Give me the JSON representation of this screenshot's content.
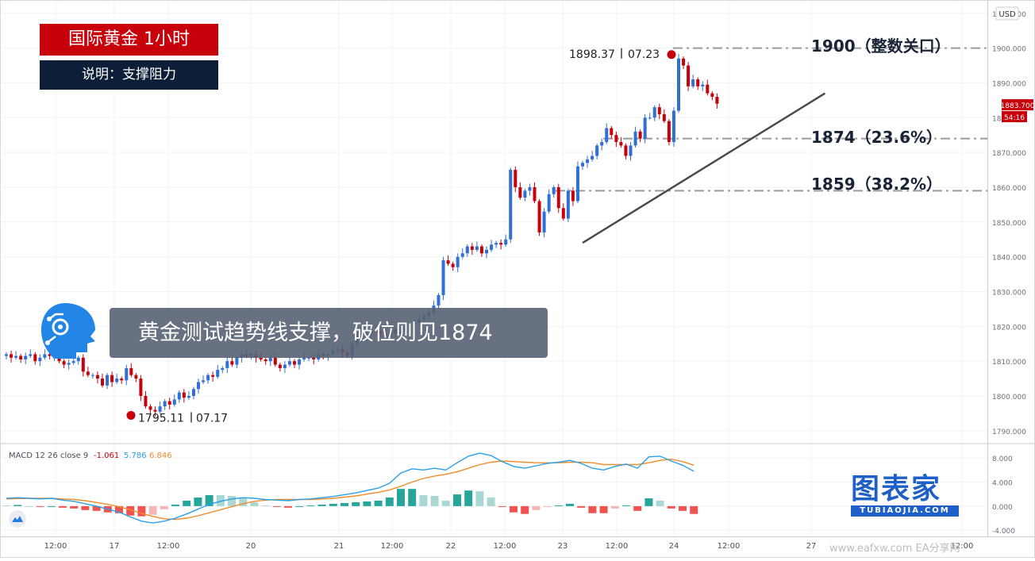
{
  "title": "国际黄金 1小时",
  "subtitle": "说明：支撑阻力",
  "banner": "黄金测试趋势线支撑，破位则见1874",
  "logo": {
    "main": "图表家",
    "url": "TUBIAOJIA.COM"
  },
  "watermark": "www.eafxw.com  EA分享网",
  "colors": {
    "up": "#2f6fd6",
    "down": "#c8000b",
    "title_bg": "#c8000b",
    "subtitle_bg": "#0d1f38",
    "macd_line": "#2aa0e8",
    "signal_line": "#f08c2a",
    "hist_up": "#26a69a",
    "hist_down": "#ef5350"
  },
  "chart_data": [
    {
      "type": "candlestick",
      "currency": "USD",
      "ylim": [
        1787,
        1912
      ],
      "y_ticks": [
        "1790.000",
        "1800.000",
        "1810.000",
        "1820.000",
        "1830.000",
        "1840.000",
        "1850.000",
        "1860.000",
        "1870.000",
        "1880.000",
        "1890.000",
        "1900.000",
        "1910.000"
      ],
      "x_ticks": [
        "12:00",
        "17",
        "12:00",
        "20",
        "21",
        "12:00",
        "22",
        "12:00",
        "23",
        "12:00",
        "24",
        "12:00",
        "27",
        "12:00"
      ],
      "last_price": "1883.700",
      "countdown": "54:16",
      "low_marker": {
        "price": "1795.11",
        "date": "07.17",
        "value": 1795.11
      },
      "high_marker": {
        "price": "1898.37",
        "date": "07.23",
        "value": 1898.37
      },
      "levels": [
        {
          "value": 1900,
          "label": "1900（整数关口）"
        },
        {
          "value": 1874,
          "label": "1874（23.6%）"
        },
        {
          "value": 1859,
          "label": "1859（38.2%）"
        }
      ],
      "trendline": {
        "from": {
          "bar": 120,
          "price": 1844
        },
        "to": {
          "bar": 168,
          "price": 1887
        }
      },
      "candles_close": [
        1812,
        1811,
        1811.5,
        1810.5,
        1811.5,
        1812,
        1810,
        1811,
        1812,
        1811.5,
        1813,
        1810,
        1809,
        1809.5,
        1810,
        1811,
        1807,
        1806,
        1806,
        1805,
        1803,
        1806,
        1804,
        1805,
        1804.5,
        1808,
        1806,
        1805,
        1800,
        1797,
        1796,
        1795.5,
        1797,
        1798.5,
        1797.5,
        1799,
        1801,
        1799.5,
        1800,
        1802,
        1804,
        1804.5,
        1806,
        1805.5,
        1807.5,
        1808,
        1810,
        1809,
        1811,
        1812,
        1811.5,
        1812,
        1811,
        1810.5,
        1810,
        1811,
        1809,
        1808,
        1809,
        1810,
        1809,
        1810.5,
        1811,
        1811,
        1810.5,
        1812,
        1811.5,
        1812,
        1813,
        1813.5,
        1812.5,
        1811.5,
        1815,
        1817,
        1816,
        1818,
        1819,
        1818.5,
        1818,
        1817,
        1819,
        1818,
        1818.5,
        1820,
        1820.5,
        1821,
        1822,
        1823,
        1824,
        1826,
        1829,
        1839,
        1838,
        1837,
        1840,
        1841,
        1843,
        1842,
        1843,
        1841,
        1842,
        1843.5,
        1844,
        1843.5,
        1845,
        1865,
        1860,
        1857,
        1859,
        1860,
        1856,
        1847,
        1853,
        1858,
        1860,
        1854,
        1851,
        1859,
        1856,
        1866,
        1867,
        1868,
        1869,
        1872,
        1873,
        1877,
        1875,
        1873,
        1872,
        1869,
        1872,
        1876,
        1874,
        1880,
        1880,
        1883,
        1881,
        1879,
        1873,
        1882,
        1897,
        1895,
        1889,
        1891,
        1889,
        1889.5,
        1887,
        1886,
        1884
      ]
    },
    {
      "type": "macd",
      "name": "MACD 12 26 close 9",
      "values": {
        "hist": "-1.061",
        "macd": "5.786",
        "signal": "6.846"
      },
      "ylim": [
        -4.5,
        10
      ],
      "y_ticks": [
        "8.000",
        "4.000",
        "0.000",
        "-4.000"
      ],
      "macd_line": [
        1.3,
        1.4,
        1.3,
        1.2,
        1.3,
        1.0,
        0.8,
        0.4,
        0.0,
        -0.5,
        -1.0,
        -1.8,
        -2.5,
        -2.8,
        -2.5,
        -2.0,
        -1.3,
        -0.5,
        0.3,
        0.8,
        1.2,
        1.4,
        1.3,
        1.1,
        1.0,
        0.9,
        1.1,
        1.2,
        1.4,
        1.6,
        1.9,
        2.2,
        2.6,
        3.0,
        3.8,
        5.5,
        6.2,
        6.0,
        6.3,
        6.0,
        7.2,
        8.3,
        8.8,
        8.4,
        7.4,
        6.6,
        6.3,
        6.7,
        7.1,
        7.3,
        7.6,
        7.1,
        6.3,
        6.0,
        6.6,
        7.0,
        6.3,
        8.2,
        8.3,
        7.5,
        6.8,
        5.8
      ],
      "signal_line": [
        1.2,
        1.25,
        1.3,
        1.3,
        1.3,
        1.2,
        1.1,
        0.9,
        0.6,
        0.3,
        -0.1,
        -0.6,
        -1.2,
        -1.7,
        -2.1,
        -2.2,
        -2.0,
        -1.6,
        -1.1,
        -0.6,
        -0.1,
        0.4,
        0.8,
        1.0,
        1.1,
        1.1,
        1.1,
        1.1,
        1.2,
        1.3,
        1.5,
        1.7,
        2.0,
        2.3,
        2.7,
        3.3,
        4.0,
        4.6,
        5.0,
        5.3,
        5.7,
        6.3,
        6.9,
        7.3,
        7.5,
        7.4,
        7.3,
        7.2,
        7.2,
        7.2,
        7.3,
        7.3,
        7.2,
        6.9,
        6.9,
        6.9,
        6.9,
        7.2,
        7.6,
        7.8,
        7.4,
        6.8
      ]
    }
  ]
}
